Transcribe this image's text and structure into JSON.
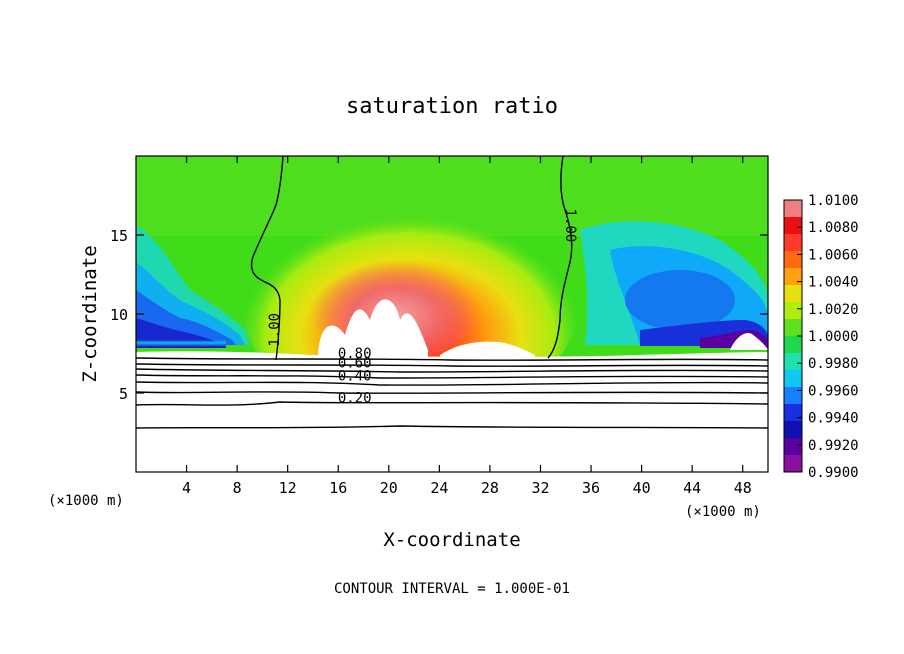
{
  "chart_data": {
    "type": "heatmap",
    "title": "saturation ratio",
    "xlabel": "X-coordinate",
    "ylabel": "Z-coordinate",
    "x_unit_label": "(×1000 m)",
    "x_unit_label_right": "(×1000 m)",
    "xlim": [
      0,
      50
    ],
    "ylim": [
      0,
      20
    ],
    "x_ticks": [
      4,
      8,
      12,
      16,
      20,
      24,
      28,
      32,
      36,
      40,
      44,
      48
    ],
    "y_ticks": [
      5,
      10,
      15
    ],
    "footer": "CONTOUR INTERVAL = 1.000E-01",
    "colorbar": {
      "ticks": [
        "1.0100",
        "1.0080",
        "1.0060",
        "1.0040",
        "1.0020",
        "1.0000",
        "0.9980",
        "0.9960",
        "0.9940",
        "0.9920",
        "0.9900"
      ],
      "colors": [
        "#f08080",
        "#e81010",
        "#ff3a2a",
        "#ff6a10",
        "#ffa010",
        "#e8e010",
        "#b0ee10",
        "#60e020",
        "#20d850",
        "#20e0b0",
        "#10c8f0",
        "#1880ff",
        "#1830e0",
        "#1010b0",
        "#5a00a0",
        "#8a10a0"
      ]
    },
    "contour_labels": [
      {
        "text": "1.00",
        "x": 11.3,
        "z": 9.0
      },
      {
        "text": "1.00",
        "x": 34.0,
        "z": 15.6
      },
      {
        "text": "0.80",
        "x": 17.3,
        "z": 7.2
      },
      {
        "text": "0.60",
        "x": 17.3,
        "z": 6.6
      },
      {
        "text": "0.40",
        "x": 17.3,
        "z": 5.8
      },
      {
        "text": "0.20",
        "x": 17.3,
        "z": 4.4
      }
    ],
    "notes": "Continuous filled field; contour lines below z≈7 show saturation ratio decreasing toward 0 near the surface."
  }
}
